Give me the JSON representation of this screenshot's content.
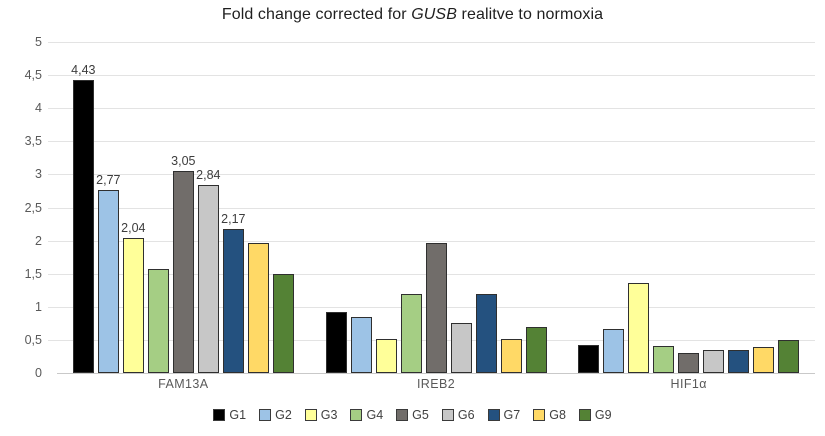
{
  "chart_data": {
    "type": "bar",
    "title": {
      "prefix": "Fold change corrected for ",
      "italic": "GUSB",
      "suffix": " realitve to normoxia"
    },
    "categories": [
      "FAM13A",
      "IREB2",
      "HIF1α"
    ],
    "series": [
      {
        "name": "G1",
        "color": "#000000",
        "values": [
          4.43,
          0.92,
          0.42
        ],
        "labels": [
          "4,43",
          null,
          null
        ]
      },
      {
        "name": "G2",
        "color": "#9dc3e6",
        "values": [
          2.77,
          0.84,
          0.67
        ],
        "labels": [
          "2,77",
          null,
          null
        ]
      },
      {
        "name": "G3",
        "color": "#ffff99",
        "values": [
          2.04,
          0.52,
          1.36
        ],
        "labels": [
          "2,04",
          null,
          null
        ]
      },
      {
        "name": "G4",
        "color": "#a5ce84",
        "values": [
          1.57,
          1.19,
          0.41
        ],
        "labels": [
          null,
          null,
          null
        ]
      },
      {
        "name": "G5",
        "color": "#716d6a",
        "values": [
          3.05,
          1.96,
          0.3
        ],
        "labels": [
          "3,05",
          null,
          null
        ]
      },
      {
        "name": "G6",
        "color": "#c7c7c7",
        "values": [
          2.84,
          0.76,
          0.34
        ],
        "labels": [
          "2,84",
          null,
          null
        ]
      },
      {
        "name": "G7",
        "color": "#24517f",
        "values": [
          2.17,
          1.19,
          0.34
        ],
        "labels": [
          "2,17",
          null,
          null
        ]
      },
      {
        "name": "G8",
        "color": "#ffd966",
        "values": [
          1.97,
          0.52,
          0.39
        ],
        "labels": [
          null,
          null,
          null
        ]
      },
      {
        "name": "G9",
        "color": "#548235",
        "values": [
          1.5,
          0.7,
          0.5
        ],
        "labels": [
          null,
          null,
          null
        ]
      }
    ],
    "ylim": [
      0,
      5
    ],
    "ytick_step": 0.5,
    "yticks": [
      "5",
      "4,5",
      "4",
      "3,5",
      "3",
      "2,5",
      "2",
      "1,5",
      "1",
      "0,5",
      "0"
    ],
    "grid": true,
    "legend_position": "bottom",
    "colors": {
      "gridline": "#e3e3e3",
      "axis_line": "#c9c9c9",
      "tick_text": "#595959",
      "data_label_text": "#3d3d3d",
      "title_text": "#1f1f1f"
    }
  }
}
